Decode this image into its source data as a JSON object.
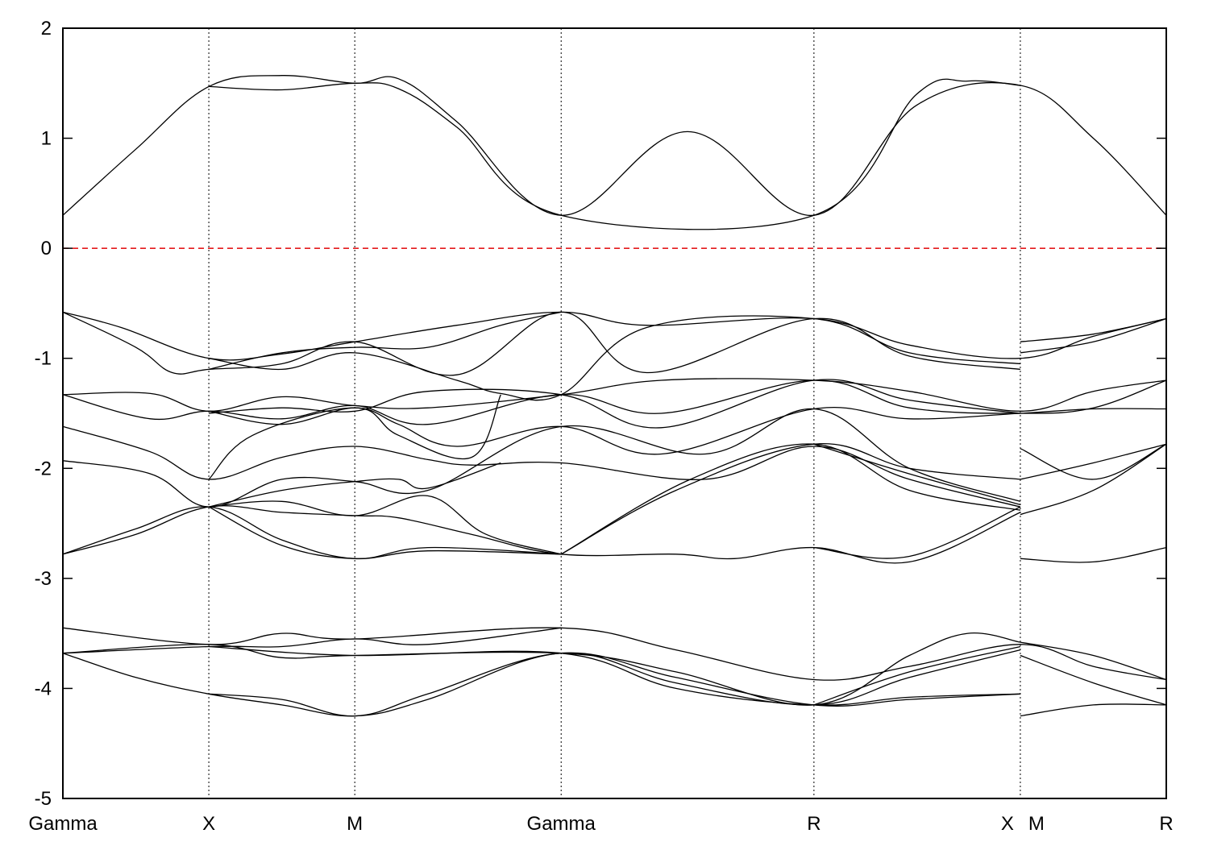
{
  "chart_data": {
    "type": "line",
    "title": "",
    "xlabel": "",
    "ylabel": "",
    "ylim": [
      -5,
      2
    ],
    "yticks": [
      2,
      1,
      0,
      -1,
      -2,
      -3,
      -4,
      -5
    ],
    "ytick_labels": [
      "2",
      "1",
      "0",
      "-1",
      "-2",
      "-3",
      "-4",
      "-5"
    ],
    "grid": "vertical dotted lines at high-symmetry points",
    "legend": "none",
    "xlim": [
      0,
      7.55
    ],
    "kpoints": [
      {
        "label": "Gamma",
        "x": 0
      },
      {
        "label": "X",
        "x": 1
      },
      {
        "label": "M",
        "x": 2
      },
      {
        "label": "Gamma",
        "x": 3.414
      },
      {
        "label": "R",
        "x": 5.146
      },
      {
        "label": "X",
        "x": 6.56
      },
      {
        "label": "M",
        "x": 6.56
      },
      {
        "label": "R",
        "x": 7.56
      }
    ],
    "fermi_level": {
      "value": 0,
      "color": "#e41a1c",
      "style": "dashed"
    },
    "series": [
      {
        "values": [
          [
            0,
            0.3
          ],
          [
            0.5,
            0.9
          ],
          [
            1,
            1.47
          ],
          [
            1.5,
            1.57
          ],
          [
            2,
            1.5
          ],
          [
            2.3,
            1.54
          ],
          [
            2.7,
            1.15
          ],
          [
            3.414,
            0.3
          ],
          [
            4.28,
            1.06
          ],
          [
            5.146,
            0.3
          ],
          [
            5.85,
            1.3
          ],
          [
            6.56,
            1.48
          ],
          [
            7.06,
            1.0
          ],
          [
            7.56,
            0.3
          ]
        ]
      },
      {
        "values": [
          [
            1,
            1.47
          ],
          [
            1.5,
            1.44
          ],
          [
            2,
            1.5
          ],
          [
            2.3,
            1.45
          ],
          [
            2.7,
            1.1
          ],
          [
            3.414,
            0.3
          ],
          [
            5.146,
            0.3
          ],
          [
            5.85,
            1.4
          ],
          [
            6.2,
            1.52
          ],
          [
            6.56,
            1.48
          ]
        ]
      },
      {
        "values": [
          [
            0,
            -0.58
          ],
          [
            0.4,
            -0.72
          ],
          [
            1,
            -1.0
          ],
          [
            1.5,
            -0.96
          ],
          [
            2,
            -0.85
          ],
          [
            2.7,
            -0.7
          ],
          [
            3.414,
            -0.58
          ],
          [
            4.0,
            -0.7
          ],
          [
            5.146,
            -0.64
          ],
          [
            5.8,
            -0.88
          ],
          [
            6.56,
            -1.0
          ],
          [
            7.06,
            -0.8
          ],
          [
            7.56,
            -0.64
          ]
        ]
      },
      {
        "values": [
          [
            0,
            -0.58
          ],
          [
            0.5,
            -0.9
          ],
          [
            0.75,
            -1.13
          ],
          [
            1,
            -1.1
          ],
          [
            1.5,
            -1.05
          ],
          [
            2,
            -0.85
          ],
          [
            2.7,
            -1.15
          ],
          [
            3.414,
            -0.58
          ],
          [
            4.0,
            -1.13
          ],
          [
            5.146,
            -0.64
          ],
          [
            5.8,
            -0.98
          ],
          [
            6.56,
            -1.1
          ]
        ]
      },
      {
        "values": [
          [
            1,
            -1.0
          ],
          [
            1.5,
            -1.1
          ],
          [
            2,
            -0.95
          ],
          [
            2.7,
            -1.2
          ],
          [
            3,
            -1.32
          ],
          [
            3.414,
            -1.33
          ],
          [
            4.0,
            -0.72
          ],
          [
            5.146,
            -0.64
          ],
          [
            5.8,
            -0.95
          ],
          [
            6.56,
            -1.05
          ]
        ]
      },
      {
        "values": [
          [
            1,
            -1.1
          ],
          [
            1.5,
            -0.95
          ],
          [
            2,
            -0.9
          ],
          [
            2.5,
            -0.9
          ],
          [
            3,
            -0.7
          ],
          [
            3.414,
            -0.58
          ]
        ]
      },
      {
        "values": [
          [
            6.56,
            -0.85
          ],
          [
            7.06,
            -0.78
          ],
          [
            7.56,
            -0.64
          ]
        ]
      },
      {
        "values": [
          [
            6.56,
            -0.95
          ],
          [
            7.06,
            -0.85
          ],
          [
            7.56,
            -0.64
          ]
        ]
      },
      {
        "values": [
          [
            0,
            -1.33
          ],
          [
            0.6,
            -1.32
          ],
          [
            1,
            -1.48
          ],
          [
            1.5,
            -1.35
          ],
          [
            2,
            -1.43
          ],
          [
            2.5,
            -1.45
          ],
          [
            3.414,
            -1.33
          ],
          [
            4.1,
            -1.2
          ],
          [
            5.146,
            -1.2
          ],
          [
            5.8,
            -1.3
          ],
          [
            6.56,
            -1.48
          ],
          [
            7.06,
            -1.3
          ],
          [
            7.56,
            -1.2
          ]
        ]
      },
      {
        "values": [
          [
            0,
            -1.33
          ],
          [
            0.6,
            -1.55
          ],
          [
            1,
            -1.48
          ],
          [
            1.5,
            -1.55
          ],
          [
            2,
            -1.43
          ],
          [
            2.5,
            -1.6
          ],
          [
            3.414,
            -1.33
          ],
          [
            4.1,
            -1.5
          ],
          [
            5.146,
            -1.2
          ],
          [
            5.8,
            -1.45
          ],
          [
            6.56,
            -1.5
          ],
          [
            7.06,
            -1.45
          ],
          [
            7.56,
            -1.2
          ]
        ]
      },
      {
        "values": [
          [
            1,
            -1.48
          ],
          [
            1.5,
            -1.6
          ],
          [
            2,
            -1.45
          ],
          [
            2.3,
            -1.6
          ],
          [
            2.7,
            -1.8
          ],
          [
            3.414,
            -1.62
          ],
          [
            4.1,
            -1.87
          ],
          [
            5.146,
            -1.46
          ],
          [
            5.8,
            -1.55
          ],
          [
            6.56,
            -1.5
          ],
          [
            7.06,
            -1.46
          ],
          [
            7.56,
            -1.46
          ]
        ]
      },
      {
        "values": [
          [
            1,
            -1.5
          ],
          [
            1.5,
            -1.45
          ],
          [
            2,
            -1.48
          ],
          [
            2.5,
            -1.3
          ],
          [
            3.414,
            -1.33
          ],
          [
            4.1,
            -1.63
          ],
          [
            5.146,
            -1.2
          ],
          [
            5.8,
            -1.38
          ],
          [
            6.56,
            -1.5
          ]
        ]
      },
      {
        "values": [
          [
            0,
            -1.62
          ],
          [
            0.6,
            -1.85
          ],
          [
            1,
            -2.1
          ],
          [
            1.5,
            -1.9
          ],
          [
            2,
            -1.8
          ],
          [
            2.5,
            -1.92
          ],
          [
            2.8,
            -1.97
          ],
          [
            3.414,
            -1.95
          ],
          [
            4.4,
            -2.1
          ],
          [
            5.146,
            -1.8
          ],
          [
            5.8,
            -2.1
          ],
          [
            6.56,
            -2.35
          ]
        ]
      },
      {
        "values": [
          [
            0,
            -1.93
          ],
          [
            0.6,
            -2.05
          ],
          [
            1,
            -2.35
          ],
          [
            1.5,
            -2.1
          ],
          [
            2,
            -2.12
          ],
          [
            2.5,
            -2.2
          ],
          [
            3.414,
            -1.62
          ],
          [
            4.4,
            -1.87
          ],
          [
            5.146,
            -1.46
          ],
          [
            5.8,
            -2.0
          ],
          [
            6.56,
            -2.3
          ]
        ]
      },
      {
        "values": [
          [
            1,
            -2.1
          ],
          [
            1.3,
            -1.7
          ],
          [
            2,
            -1.45
          ],
          [
            2.3,
            -1.7
          ],
          [
            2.8,
            -1.9
          ],
          [
            3.0,
            -1.33
          ]
        ]
      },
      {
        "values": [
          [
            1,
            -2.35
          ],
          [
            1.5,
            -2.2
          ],
          [
            2,
            -2.12
          ],
          [
            2.3,
            -2.1
          ],
          [
            2.5,
            -2.18
          ],
          [
            3.0,
            -1.95
          ]
        ]
      },
      {
        "values": [
          [
            3.414,
            -2.78
          ],
          [
            4.2,
            -2.2
          ],
          [
            5.146,
            -1.78
          ],
          [
            5.8,
            -2.0
          ],
          [
            6.56,
            -2.1
          ]
        ]
      },
      {
        "values": [
          [
            3.414,
            -2.78
          ],
          [
            4.3,
            -2.1
          ],
          [
            5.146,
            -1.78
          ],
          [
            5.8,
            -2.2
          ],
          [
            6.56,
            -2.38
          ]
        ]
      },
      {
        "values": [
          [
            5.146,
            -1.78
          ],
          [
            5.8,
            -2.05
          ],
          [
            6.56,
            -2.33
          ]
        ]
      },
      {
        "values": [
          [
            6.56,
            -1.82
          ],
          [
            7.06,
            -2.1
          ],
          [
            7.56,
            -1.78
          ]
        ]
      },
      {
        "values": [
          [
            6.56,
            -2.1
          ],
          [
            7.06,
            -1.95
          ],
          [
            7.56,
            -1.78
          ]
        ]
      },
      {
        "values": [
          [
            0,
            -2.78
          ],
          [
            0.5,
            -2.6
          ],
          [
            1,
            -2.35
          ],
          [
            1.5,
            -2.4
          ],
          [
            2,
            -2.43
          ],
          [
            2.3,
            -2.45
          ],
          [
            2.8,
            -2.6
          ],
          [
            3.414,
            -2.78
          ],
          [
            4.2,
            -2.78
          ],
          [
            4.6,
            -2.82
          ],
          [
            5.146,
            -2.72
          ],
          [
            5.8,
            -2.85
          ],
          [
            6.56,
            -2.4
          ]
        ]
      },
      {
        "values": [
          [
            0,
            -2.78
          ],
          [
            0.5,
            -2.55
          ],
          [
            1,
            -2.35
          ],
          [
            1.5,
            -2.65
          ],
          [
            2,
            -2.82
          ],
          [
            2.5,
            -2.72
          ],
          [
            3.414,
            -2.78
          ]
        ]
      },
      {
        "values": [
          [
            1,
            -2.35
          ],
          [
            1.5,
            -2.7
          ],
          [
            2,
            -2.82
          ],
          [
            2.5,
            -2.75
          ],
          [
            3.414,
            -2.78
          ]
        ]
      },
      {
        "values": [
          [
            1,
            -2.35
          ],
          [
            1.5,
            -2.3
          ],
          [
            2,
            -2.43
          ],
          [
            2.5,
            -2.25
          ],
          [
            2.9,
            -2.6
          ],
          [
            3.414,
            -2.78
          ]
        ]
      },
      {
        "values": [
          [
            5.146,
            -2.72
          ],
          [
            5.8,
            -2.8
          ],
          [
            6.56,
            -2.35
          ]
        ]
      },
      {
        "values": [
          [
            6.56,
            -2.42
          ],
          [
            7.06,
            -2.2
          ],
          [
            7.56,
            -1.78
          ]
        ]
      },
      {
        "values": [
          [
            6.56,
            -2.82
          ],
          [
            7.06,
            -2.85
          ],
          [
            7.56,
            -2.72
          ]
        ]
      },
      {
        "values": [
          [
            0,
            -3.45
          ],
          [
            1,
            -3.6
          ],
          [
            1.5,
            -3.5
          ],
          [
            2,
            -3.55
          ],
          [
            3.414,
            -3.45
          ],
          [
            4.2,
            -3.65
          ],
          [
            5.146,
            -3.92
          ],
          [
            5.8,
            -3.8
          ],
          [
            6.56,
            -3.6
          ],
          [
            7.06,
            -3.8
          ],
          [
            7.56,
            -3.92
          ]
        ]
      },
      {
        "values": [
          [
            0,
            -3.68
          ],
          [
            1,
            -3.62
          ],
          [
            1.5,
            -3.62
          ],
          [
            2,
            -3.55
          ],
          [
            2.5,
            -3.6
          ],
          [
            3.414,
            -3.45
          ]
        ]
      },
      {
        "values": [
          [
            0,
            -3.68
          ],
          [
            1,
            -3.6
          ],
          [
            1.5,
            -3.72
          ],
          [
            2,
            -3.7
          ],
          [
            3.414,
            -3.68
          ],
          [
            4.2,
            -3.85
          ],
          [
            5.146,
            -4.15
          ],
          [
            5.8,
            -3.7
          ],
          [
            6.2,
            -3.5
          ],
          [
            6.56,
            -3.58
          ]
        ]
      },
      {
        "values": [
          [
            0,
            -3.68
          ],
          [
            0.5,
            -3.9
          ],
          [
            1,
            -4.05
          ],
          [
            1.5,
            -4.15
          ],
          [
            2,
            -4.25
          ],
          [
            2.5,
            -4.1
          ],
          [
            3.414,
            -3.68
          ],
          [
            4.2,
            -3.95
          ],
          [
            5.146,
            -4.15
          ],
          [
            5.8,
            -3.9
          ],
          [
            6.56,
            -3.65
          ]
        ]
      },
      {
        "values": [
          [
            1,
            -4.05
          ],
          [
            1.5,
            -4.1
          ],
          [
            2,
            -4.25
          ],
          [
            2.5,
            -4.05
          ],
          [
            3.414,
            -3.68
          ],
          [
            4.2,
            -3.9
          ],
          [
            5.146,
            -4.15
          ],
          [
            5.8,
            -4.1
          ],
          [
            6.56,
            -4.05
          ]
        ]
      },
      {
        "values": [
          [
            1,
            -3.62
          ],
          [
            2,
            -3.7
          ],
          [
            3.414,
            -3.68
          ],
          [
            4.2,
            -4.0
          ],
          [
            5.146,
            -4.15
          ],
          [
            5.8,
            -4.08
          ],
          [
            6.56,
            -4.05
          ]
        ]
      },
      {
        "values": [
          [
            5.146,
            -4.15
          ],
          [
            5.8,
            -3.85
          ],
          [
            6.56,
            -3.62
          ]
        ]
      },
      {
        "values": [
          [
            6.56,
            -3.58
          ],
          [
            7.06,
            -3.7
          ],
          [
            7.56,
            -3.92
          ]
        ]
      },
      {
        "values": [
          [
            6.56,
            -3.7
          ],
          [
            7.06,
            -3.95
          ],
          [
            7.56,
            -4.15
          ]
        ]
      },
      {
        "values": [
          [
            6.56,
            -4.25
          ],
          [
            7.06,
            -4.15
          ],
          [
            7.56,
            -4.15
          ]
        ]
      }
    ]
  }
}
